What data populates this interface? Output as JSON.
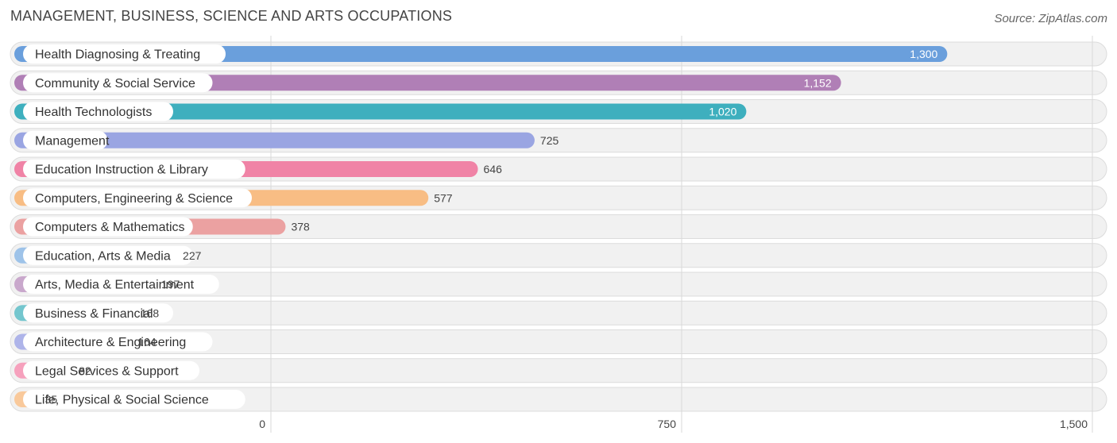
{
  "header": {
    "title": "MANAGEMENT, BUSINESS, SCIENCE AND ARTS OCCUPATIONS",
    "source": "Source: ZipAtlas.com"
  },
  "chart_data": {
    "type": "bar",
    "orientation": "horizontal",
    "title": "MANAGEMENT, BUSINESS, SCIENCE AND ARTS OCCUPATIONS",
    "xlim": [
      0,
      1500
    ],
    "x_ticks": [
      0,
      750,
      1500
    ],
    "x_tick_labels": [
      "0",
      "750",
      "1,500"
    ],
    "grid": true,
    "categories": [
      "Health Diagnosing & Treating",
      "Community & Social Service",
      "Health Technologists",
      "Management",
      "Education Instruction & Library",
      "Computers, Engineering & Science",
      "Computers & Mathematics",
      "Education, Arts & Media",
      "Arts, Media & Entertainment",
      "Business & Financial",
      "Architecture & Engineering",
      "Legal Services & Support",
      "Life, Physical & Social Science"
    ],
    "values": [
      1300,
      1152,
      1020,
      725,
      646,
      577,
      378,
      227,
      197,
      168,
      164,
      82,
      35
    ],
    "value_labels": [
      "1,300",
      "1,152",
      "1,020",
      "725",
      "646",
      "577",
      "378",
      "227",
      "197",
      "168",
      "164",
      "82",
      "35"
    ],
    "colors": [
      "#6a9fdc",
      "#b07fb6",
      "#3eafbe",
      "#9aa5e2",
      "#f083a6",
      "#f8bd84",
      "#eba1a1",
      "#9ec3e9",
      "#c9a8cc",
      "#74c6ce",
      "#aeb4e9",
      "#f6a1bd",
      "#f9c99b"
    ]
  }
}
